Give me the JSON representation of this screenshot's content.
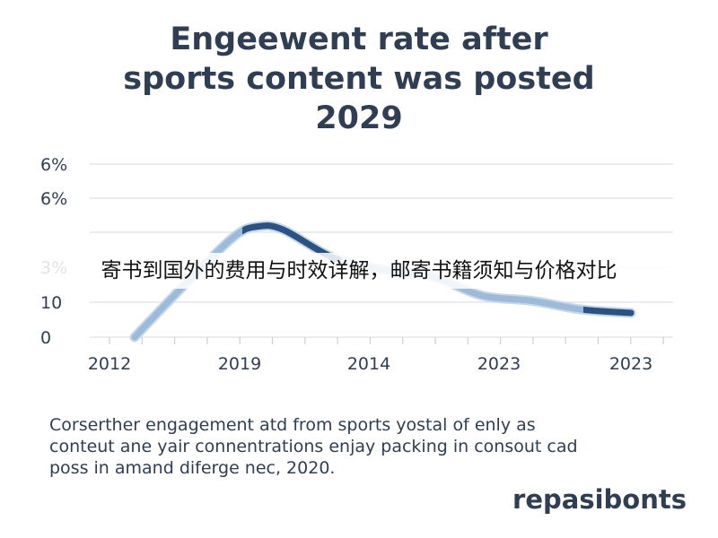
{
  "chart_data": {
    "type": "line",
    "title_lines": [
      "Engeewent rate after",
      "sports content was posted",
      "2029"
    ],
    "y_ticks": [
      "0",
      "10",
      "3%",
      "6%",
      "6%"
    ],
    "x_ticks": [
      "2012",
      "2019",
      "2014",
      "2023",
      "2023"
    ],
    "xlabel": "",
    "ylabel": "",
    "grid": true,
    "series": [
      {
        "color": "#2c5282",
        "x": [
          0,
          0.4,
          0.8,
          1.0,
          1.2,
          1.6,
          2.0,
          2.4,
          2.8,
          3.2,
          3.6,
          4.0
        ],
        "values": [
          0.0,
          1.5,
          2.9,
          3.2,
          3.1,
          2.3,
          1.95,
          1.75,
          1.2,
          1.05,
          0.8,
          0.7
        ]
      }
    ],
    "ylim": [
      0,
      5
    ]
  },
  "overlay_text": "寄书到国外的费用与时效详解，邮寄书籍须知与价格对比",
  "caption_lines": [
    "Corserther engagement atd from sports yostal of enly as",
    "conteut ane yair connentrations enjay packing in consout cad",
    "poss in amand diferge nec, 2020."
  ],
  "brand": "repasibonts"
}
